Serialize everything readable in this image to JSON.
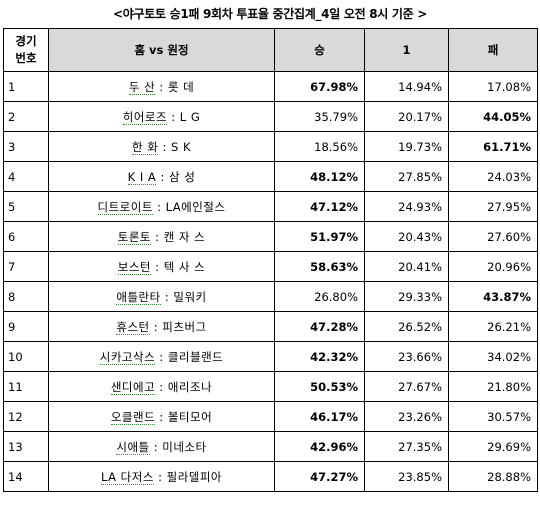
{
  "title": "<야구토토 승1패 9회차 투표율 중간집계_4일 오전 8시 기준 >",
  "headers": {
    "num_line1": "경기",
    "num_line2": "번호",
    "match": "홈 vs 원정",
    "win": "승",
    "one": "1",
    "lose": "패"
  },
  "rows": [
    {
      "num": "1",
      "home": "두    산",
      "away": "롯    데",
      "win": "67.98%",
      "one": "14.94%",
      "lose": "17.08%",
      "bold": "win"
    },
    {
      "num": "2",
      "home": "히어로즈",
      "away": "L     G",
      "win": "35.79%",
      "one": "20.17%",
      "lose": "44.05%",
      "bold": "lose"
    },
    {
      "num": "3",
      "home": "한    화",
      "away": "S     K",
      "win": "18.56%",
      "one": "19.73%",
      "lose": "61.71%",
      "bold": "lose"
    },
    {
      "num": "4",
      "home": "K  I  A",
      "away": "삼     성",
      "win": "48.12%",
      "one": "27.85%",
      "lose": "24.03%",
      "bold": "win"
    },
    {
      "num": "5",
      "home": "디트로이트",
      "away": "LA에인절스",
      "win": "47.12%",
      "one": "24.93%",
      "lose": "27.95%",
      "bold": "win"
    },
    {
      "num": "6",
      "home": "토론토",
      "away": "캔 자 스",
      "win": "51.97%",
      "one": "20.43%",
      "lose": "27.60%",
      "bold": "win"
    },
    {
      "num": "7",
      "home": "보스턴",
      "away": "텍 사 스",
      "win": "58.63%",
      "one": "20.41%",
      "lose": "20.96%",
      "bold": "win"
    },
    {
      "num": "8",
      "home": "애틀란타",
      "away": "밀워키",
      "win": "26.80%",
      "one": "29.33%",
      "lose": "43.87%",
      "bold": "lose"
    },
    {
      "num": "9",
      "home": "휴스턴",
      "away": "피츠버그",
      "win": "47.28%",
      "one": "26.52%",
      "lose": "26.21%",
      "bold": "win"
    },
    {
      "num": "10",
      "home": "시카고삭스",
      "away": "클리블랜드",
      "win": "42.32%",
      "one": "23.66%",
      "lose": "34.02%",
      "bold": "win"
    },
    {
      "num": "11",
      "home": "샌디에고",
      "away": "애리조나",
      "win": "50.53%",
      "one": "27.67%",
      "lose": "21.80%",
      "bold": "win"
    },
    {
      "num": "12",
      "home": "오클랜드",
      "away": "볼티모어",
      "win": "46.17%",
      "one": "23.26%",
      "lose": "30.57%",
      "bold": "win"
    },
    {
      "num": "13",
      "home": "시애틀",
      "away": "미네소타",
      "win": "42.96%",
      "one": "27.35%",
      "lose": "29.69%",
      "bold": "win"
    },
    {
      "num": "14",
      "home": "LA 다저스",
      "away": "필라델피아",
      "win": "47.27%",
      "one": "23.85%",
      "lose": "28.88%",
      "bold": "win"
    }
  ]
}
